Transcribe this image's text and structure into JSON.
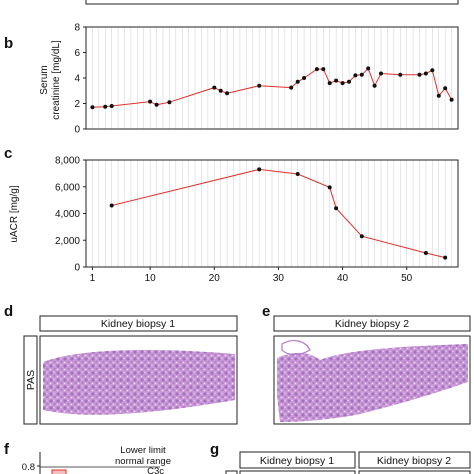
{
  "panels": {
    "b": "b",
    "c": "c",
    "d": "d",
    "e": "e",
    "f": "f",
    "g": "g"
  },
  "chart_data": [
    {
      "panel": "b",
      "type": "line",
      "ylabel_line1": "Serum",
      "ylabel_line2": "creatinine [mg/dL]",
      "ylim": [
        0,
        8
      ],
      "yticks": [
        "0",
        "2",
        "4",
        "6",
        "8"
      ],
      "xlim": [
        0,
        58
      ],
      "grid": "vertical",
      "color": "#e0302a",
      "series": [
        {
          "x": [
            1,
            3,
            4,
            10,
            11,
            13,
            20,
            21,
            22,
            27,
            32,
            33,
            34,
            36,
            37,
            38,
            39,
            40,
            41,
            42,
            43,
            44,
            45,
            46,
            49,
            52,
            53,
            54,
            55,
            56,
            57
          ],
          "values": [
            1.7,
            1.75,
            1.8,
            2.15,
            1.9,
            2.1,
            3.25,
            3.0,
            2.8,
            3.4,
            3.25,
            3.7,
            4.0,
            4.7,
            4.7,
            3.6,
            3.8,
            3.6,
            3.7,
            4.2,
            4.25,
            4.75,
            3.4,
            4.35,
            4.25,
            4.25,
            4.35,
            4.6,
            2.6,
            3.2,
            2.3
          ]
        }
      ]
    },
    {
      "panel": "c",
      "type": "line",
      "ylabel": "uACR [mg/g]",
      "ylim": [
        0,
        8000
      ],
      "yticks": [
        "0",
        "2,000",
        "4,000",
        "6,000",
        "8,000"
      ],
      "xlim": [
        0,
        58
      ],
      "xticks": [
        "1",
        "10",
        "20",
        "30",
        "40",
        "50"
      ],
      "grid": "vertical",
      "color": "#e0302a",
      "series": [
        {
          "x": [
            4,
            27,
            33,
            38,
            39,
            43,
            53,
            56
          ],
          "values": [
            4600,
            7300,
            6950,
            5950,
            4400,
            2300,
            1050,
            700
          ]
        }
      ]
    }
  ],
  "biopsy": {
    "d_title": "Kidney biopsy 1",
    "e_title": "Kidney biopsy 2",
    "stain": "PAS"
  },
  "panel_f": {
    "lower_limit_line1": "Lower limit",
    "lower_limit_line2": "normal range",
    "tick": "0.8",
    "tag": "C3c"
  },
  "panel_g": {
    "col1": "Kidney biopsy 1",
    "col2": "Kidney biopsy 2"
  }
}
